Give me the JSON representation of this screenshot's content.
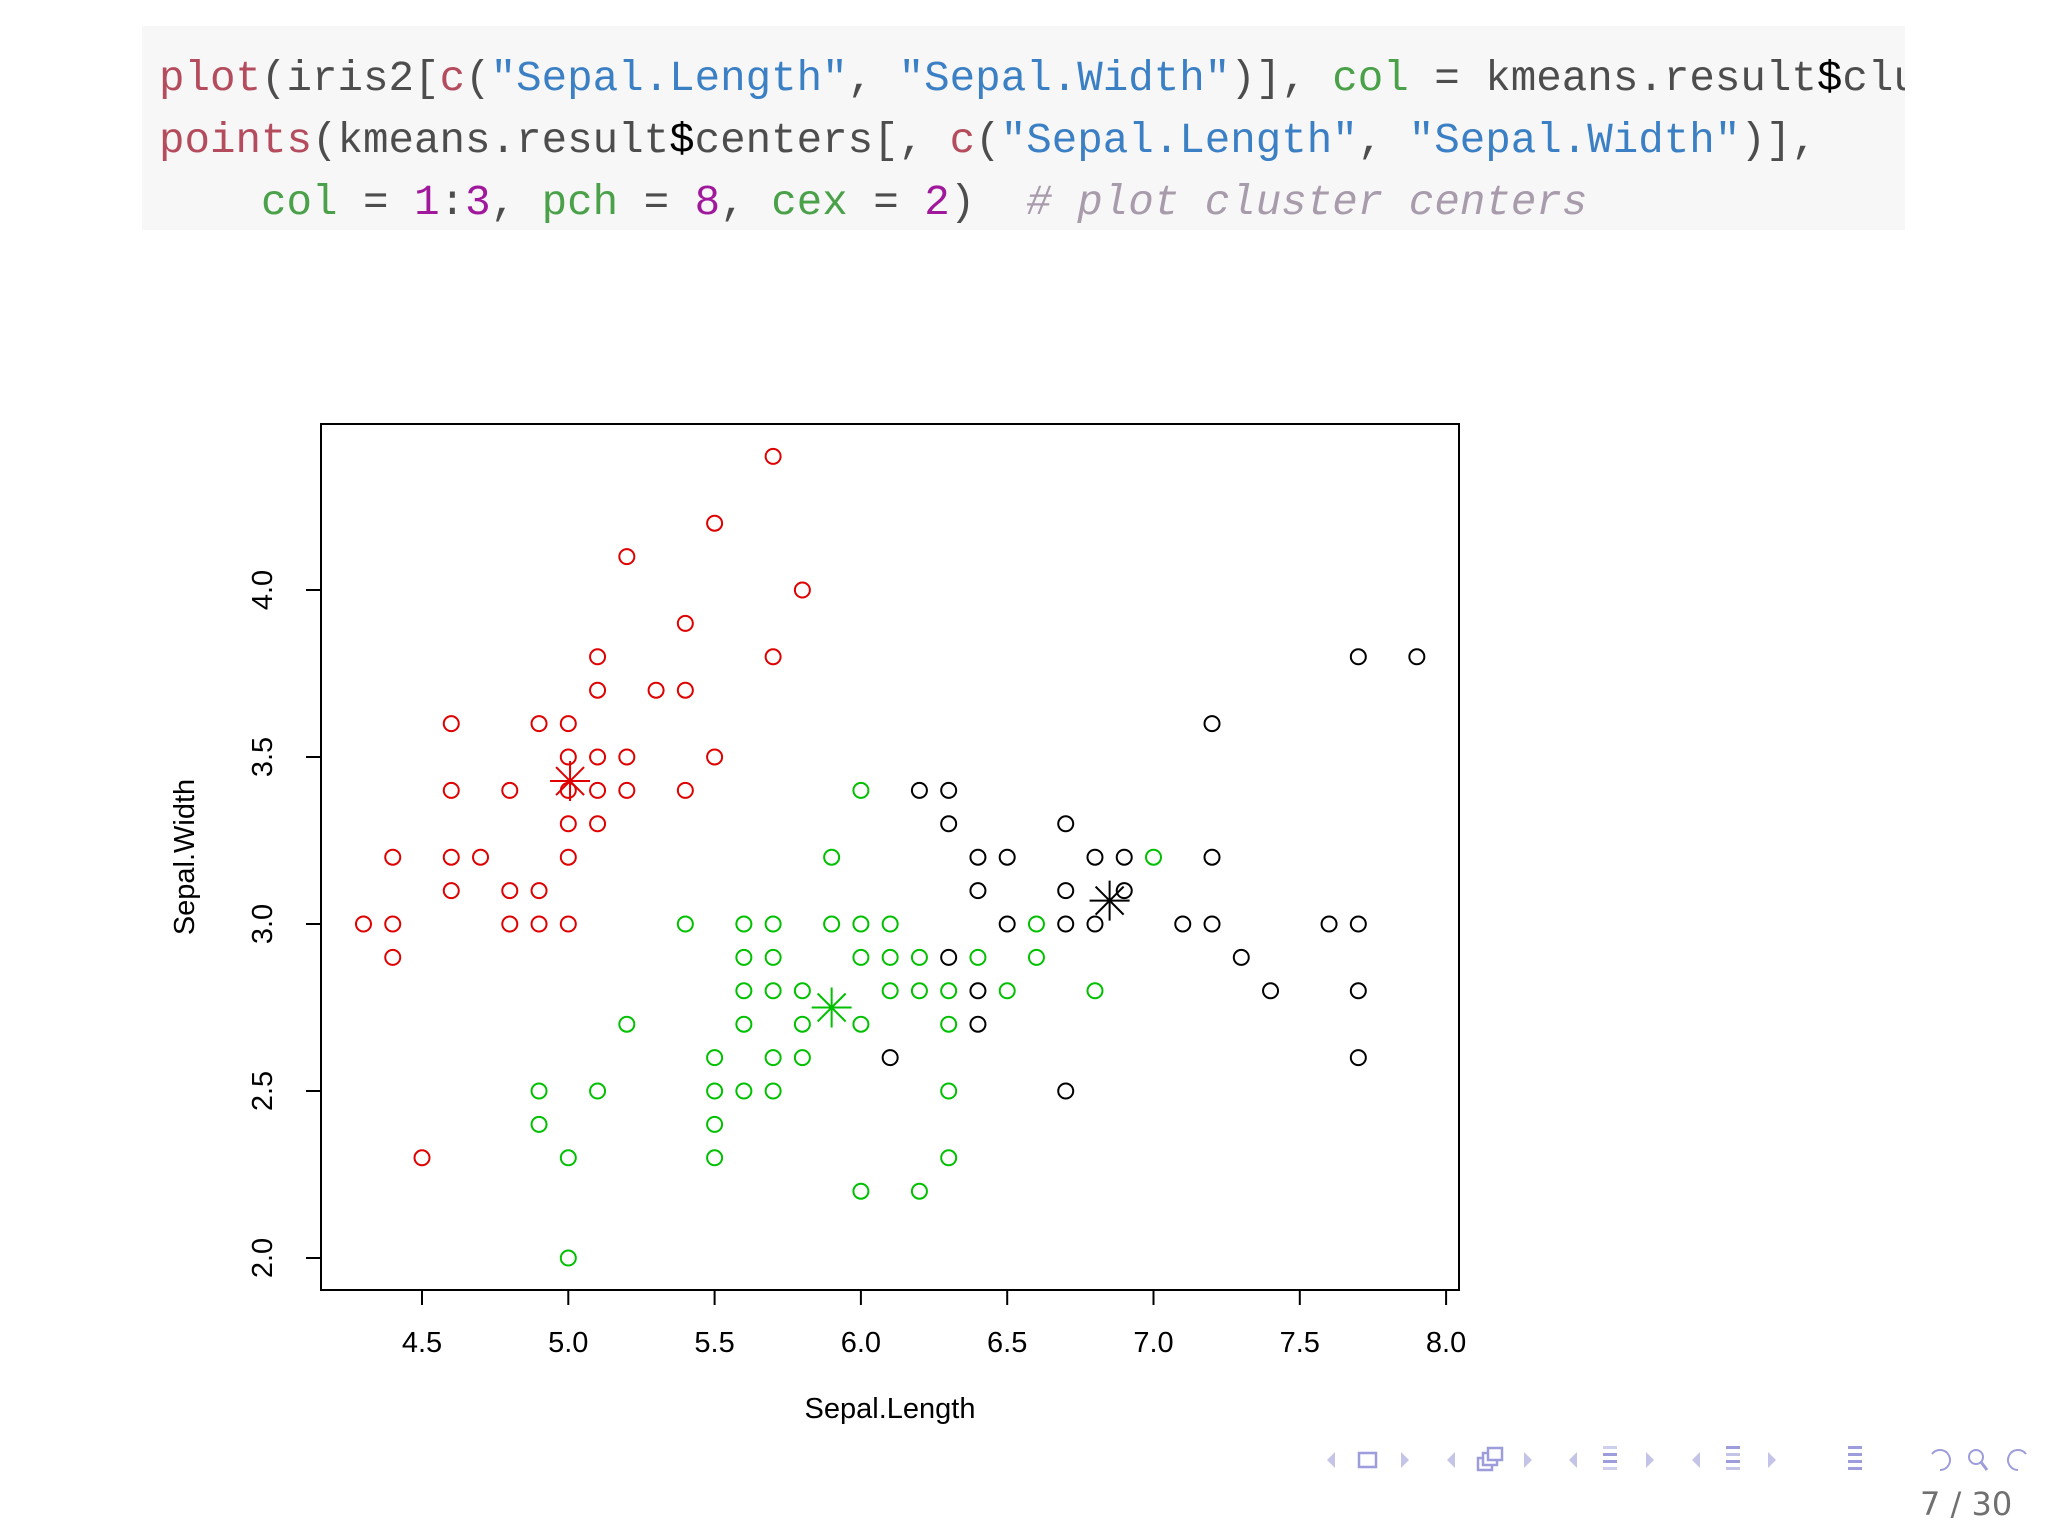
{
  "code": {
    "line1": [
      {
        "t": "plot",
        "c": "fn"
      },
      {
        "t": "(iris2[",
        "c": ""
      },
      {
        "t": "c",
        "c": "fn"
      },
      {
        "t": "(",
        "c": ""
      },
      {
        "t": "\"Sepal.Length\"",
        "c": "str"
      },
      {
        "t": ", ",
        "c": ""
      },
      {
        "t": "\"Sepal.Width\"",
        "c": "str"
      },
      {
        "t": ")], ",
        "c": ""
      },
      {
        "t": "col",
        "c": "arg"
      },
      {
        "t": " = kmeans.result",
        "c": ""
      },
      {
        "t": "$",
        "c": "dl"
      },
      {
        "t": "cluster)",
        "c": ""
      }
    ],
    "line2": [
      {
        "t": "points",
        "c": "fn"
      },
      {
        "t": "(kmeans.result",
        "c": ""
      },
      {
        "t": "$",
        "c": "dl"
      },
      {
        "t": "centers[, ",
        "c": ""
      },
      {
        "t": "c",
        "c": "fn"
      },
      {
        "t": "(",
        "c": ""
      },
      {
        "t": "\"Sepal.Length\"",
        "c": "str"
      },
      {
        "t": ", ",
        "c": ""
      },
      {
        "t": "\"Sepal.Width\"",
        "c": "str"
      },
      {
        "t": ")],",
        "c": ""
      }
    ],
    "line3": [
      {
        "t": "    ",
        "c": ""
      },
      {
        "t": "col",
        "c": "arg"
      },
      {
        "t": " = ",
        "c": ""
      },
      {
        "t": "1",
        "c": "num"
      },
      {
        "t": ":",
        "c": ""
      },
      {
        "t": "3",
        "c": "num"
      },
      {
        "t": ", ",
        "c": ""
      },
      {
        "t": "pch",
        "c": "arg"
      },
      {
        "t": " = ",
        "c": ""
      },
      {
        "t": "8",
        "c": "num"
      },
      {
        "t": ", ",
        "c": ""
      },
      {
        "t": "cex",
        "c": "arg"
      },
      {
        "t": " = ",
        "c": ""
      },
      {
        "t": "2",
        "c": "num"
      },
      {
        "t": ")  ",
        "c": ""
      },
      {
        "t": "# plot cluster centers",
        "c": "cm"
      }
    ]
  },
  "chart_data": {
    "type": "scatter",
    "xlabel": "Sepal.Length",
    "ylabel": "Sepal.Width",
    "xlim": [
      4.3,
      7.9
    ],
    "ylim": [
      2.0,
      4.4
    ],
    "xticks": [
      "4.5",
      "5.0",
      "5.5",
      "6.0",
      "6.5",
      "7.0",
      "7.5",
      "8.0"
    ],
    "yticks": [
      "2.0",
      "2.5",
      "3.0",
      "3.5",
      "4.0"
    ],
    "grid": false,
    "legend": "none",
    "series": [
      {
        "color": "#df0000",
        "marker": "open-circle",
        "points": [
          [
            5.7,
            4.4
          ],
          [
            5.5,
            4.2
          ],
          [
            5.2,
            4.1
          ],
          [
            5.8,
            4.0
          ],
          [
            5.4,
            3.9
          ],
          [
            5.1,
            3.8
          ],
          [
            5.7,
            3.8
          ],
          [
            5.1,
            3.7
          ],
          [
            5.3,
            3.7
          ],
          [
            5.4,
            3.7
          ],
          [
            4.6,
            3.6
          ],
          [
            4.9,
            3.6
          ],
          [
            5.0,
            3.6
          ],
          [
            5.0,
            3.5
          ],
          [
            5.1,
            3.5
          ],
          [
            5.2,
            3.5
          ],
          [
            5.5,
            3.5
          ],
          [
            4.6,
            3.4
          ],
          [
            4.8,
            3.4
          ],
          [
            5.0,
            3.4
          ],
          [
            5.1,
            3.4
          ],
          [
            5.2,
            3.4
          ],
          [
            5.4,
            3.4
          ],
          [
            5.0,
            3.3
          ],
          [
            5.1,
            3.3
          ],
          [
            4.4,
            3.2
          ],
          [
            4.6,
            3.2
          ],
          [
            4.7,
            3.2
          ],
          [
            5.0,
            3.2
          ],
          [
            4.6,
            3.1
          ],
          [
            4.8,
            3.1
          ],
          [
            4.9,
            3.1
          ],
          [
            4.3,
            3.0
          ],
          [
            4.4,
            3.0
          ],
          [
            4.8,
            3.0
          ],
          [
            4.9,
            3.0
          ],
          [
            5.0,
            3.0
          ],
          [
            4.4,
            2.9
          ],
          [
            4.5,
            2.3
          ]
        ]
      },
      {
        "color": "#00c000",
        "marker": "open-circle",
        "points": [
          [
            6.0,
            3.4
          ],
          [
            5.9,
            3.2
          ],
          [
            7.0,
            3.2
          ],
          [
            5.4,
            3.0
          ],
          [
            5.6,
            3.0
          ],
          [
            5.7,
            3.0
          ],
          [
            5.9,
            3.0
          ],
          [
            6.0,
            3.0
          ],
          [
            6.1,
            3.0
          ],
          [
            6.6,
            3.0
          ],
          [
            5.6,
            2.9
          ],
          [
            5.7,
            2.9
          ],
          [
            6.0,
            2.9
          ],
          [
            6.1,
            2.9
          ],
          [
            6.2,
            2.9
          ],
          [
            6.4,
            2.9
          ],
          [
            6.6,
            2.9
          ],
          [
            5.6,
            2.8
          ],
          [
            5.7,
            2.8
          ],
          [
            5.8,
            2.8
          ],
          [
            6.1,
            2.8
          ],
          [
            6.2,
            2.8
          ],
          [
            6.3,
            2.8
          ],
          [
            6.5,
            2.8
          ],
          [
            6.8,
            2.8
          ],
          [
            5.2,
            2.7
          ],
          [
            5.6,
            2.7
          ],
          [
            5.8,
            2.7
          ],
          [
            6.0,
            2.7
          ],
          [
            6.3,
            2.7
          ],
          [
            5.5,
            2.6
          ],
          [
            5.7,
            2.6
          ],
          [
            5.8,
            2.6
          ],
          [
            4.9,
            2.5
          ],
          [
            5.1,
            2.5
          ],
          [
            5.5,
            2.5
          ],
          [
            5.6,
            2.5
          ],
          [
            5.7,
            2.5
          ],
          [
            6.3,
            2.5
          ],
          [
            4.9,
            2.4
          ],
          [
            5.5,
            2.4
          ],
          [
            5.0,
            2.3
          ],
          [
            5.5,
            2.3
          ],
          [
            6.3,
            2.3
          ],
          [
            6.0,
            2.2
          ],
          [
            6.2,
            2.2
          ],
          [
            5.0,
            2.0
          ]
        ]
      },
      {
        "color": "#000000",
        "marker": "open-circle",
        "points": [
          [
            7.7,
            3.8
          ],
          [
            7.9,
            3.8
          ],
          [
            7.2,
            3.6
          ],
          [
            6.2,
            3.4
          ],
          [
            6.3,
            3.4
          ],
          [
            6.3,
            3.3
          ],
          [
            6.7,
            3.3
          ],
          [
            6.4,
            3.2
          ],
          [
            6.5,
            3.2
          ],
          [
            6.8,
            3.2
          ],
          [
            6.9,
            3.2
          ],
          [
            7.2,
            3.2
          ],
          [
            6.4,
            3.1
          ],
          [
            6.7,
            3.1
          ],
          [
            6.9,
            3.1
          ],
          [
            6.5,
            3.0
          ],
          [
            6.7,
            3.0
          ],
          [
            6.8,
            3.0
          ],
          [
            7.1,
            3.0
          ],
          [
            7.2,
            3.0
          ],
          [
            7.6,
            3.0
          ],
          [
            7.7,
            3.0
          ],
          [
            6.3,
            2.9
          ],
          [
            7.3,
            2.9
          ],
          [
            6.4,
            2.8
          ],
          [
            7.4,
            2.8
          ],
          [
            7.7,
            2.8
          ],
          [
            6.4,
            2.7
          ],
          [
            6.1,
            2.6
          ],
          [
            7.7,
            2.6
          ],
          [
            6.7,
            2.5
          ]
        ]
      }
    ],
    "centers": [
      {
        "color": "#000000",
        "marker": "asterisk",
        "x": 6.85,
        "y": 3.07
      },
      {
        "color": "#df0000",
        "marker": "asterisk",
        "x": 5.006,
        "y": 3.428
      },
      {
        "color": "#00c000",
        "marker": "asterisk",
        "x": 5.9,
        "y": 2.75
      }
    ]
  },
  "nav": {
    "icons": [
      "arrow-left-icon",
      "frame-icon",
      "arrow-right-icon",
      "arrow-left-icon",
      "subsection-icon",
      "arrow-right-icon",
      "arrow-left-icon",
      "section-icon",
      "arrow-right-icon",
      "arrow-left-icon",
      "document-icon",
      "arrow-right-icon",
      "toc-icon",
      "back-icon",
      "search-icon",
      "forward-icon"
    ],
    "color": "#9d9ddb",
    "page_number": "7 / 30"
  }
}
